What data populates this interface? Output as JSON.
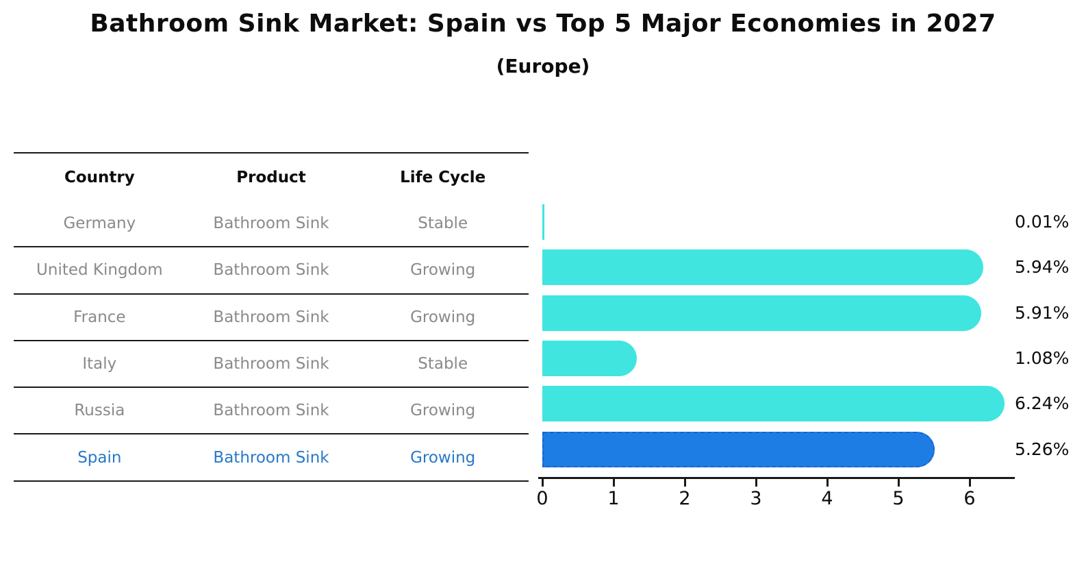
{
  "title": "Bathroom Sink Market: Spain vs Top 5 Major Economies in 2027",
  "subtitle": "(Europe)",
  "table": {
    "columns": [
      "Country",
      "Product",
      "Life Cycle"
    ],
    "rows": [
      {
        "country": "Germany",
        "product": "Bathroom Sink",
        "life_cycle": "Stable",
        "highlighted": false
      },
      {
        "country": "United Kingdom",
        "product": "Bathroom Sink",
        "life_cycle": "Growing",
        "highlighted": false
      },
      {
        "country": "France",
        "product": "Bathroom Sink",
        "life_cycle": "Growing",
        "highlighted": false
      },
      {
        "country": "Italy",
        "product": "Bathroom Sink",
        "life_cycle": "Stable",
        "highlighted": false
      },
      {
        "country": "Russia",
        "product": "Bathroom Sink",
        "life_cycle": "Growing",
        "highlighted": false
      },
      {
        "country": "Spain",
        "product": "Bathroom Sink",
        "life_cycle": "Growing",
        "highlighted": true
      }
    ]
  },
  "chart_data": {
    "type": "bar",
    "orientation": "horizontal",
    "title": "Bathroom Sink Market: Spain vs Top 5 Major Economies in 2027",
    "subtitle": "(Europe)",
    "categories": [
      "Germany",
      "United Kingdom",
      "France",
      "Italy",
      "Russia",
      "Spain"
    ],
    "values": [
      0.01,
      5.94,
      5.91,
      1.08,
      6.24,
      5.26
    ],
    "value_labels": [
      "0.01%",
      "5.94%",
      "5.91%",
      "1.08%",
      "6.24%",
      "5.26%"
    ],
    "x_ticks": [
      0,
      1,
      2,
      3,
      4,
      5,
      6
    ],
    "xlim": [
      0,
      6.6
    ],
    "grid": false,
    "legend": false,
    "highlight_category": "Spain",
    "bar_color": "#40E5E0",
    "highlight_bar_color": "#1E7DE5",
    "highlight_border_color": "#1565C8"
  },
  "colors": {
    "row_text": "#8a8a8a",
    "highlight_text": "#2878C8",
    "header_text": "#0d0d0d",
    "line": "#1a1a1a",
    "value_label": "#0d0d0d"
  }
}
